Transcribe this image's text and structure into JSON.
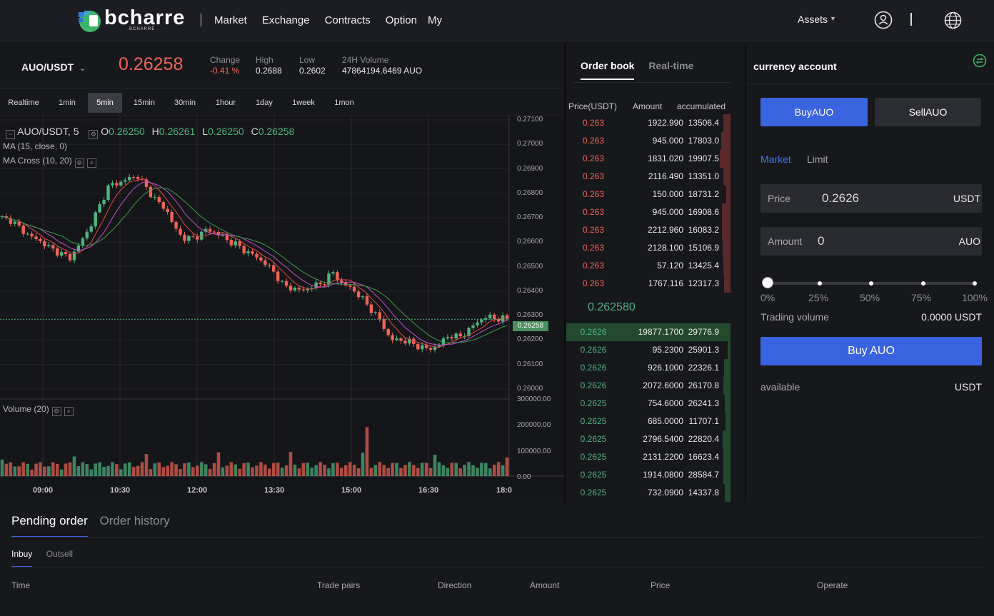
{
  "nav": {
    "logo_text": "bcharre",
    "logo_sub": "BCHARRE",
    "links": [
      "Market",
      "Exchange",
      "Contracts",
      "Option",
      "My"
    ],
    "assets": "Assets",
    "user_icon": "user-icon",
    "globe_icon": "globe-icon"
  },
  "ticker": {
    "pair": "AUO/USDT",
    "last_price": "0.26258",
    "change_label": "Change",
    "change_value": "-0.41 %",
    "high_label": "High",
    "high_value": "0.2688",
    "low_label": "Low",
    "low_value": "0.2602",
    "volume_label": "24H Volume",
    "volume_value": "47864194.6469 AUO"
  },
  "timeframes": [
    "Realtime",
    "1min",
    "5min",
    "15min",
    "30min",
    "1hour",
    "1day",
    "1week",
    "1mon"
  ],
  "active_timeframe": "5min",
  "chart": {
    "symbol": "AUO/USDT, 5",
    "o_label": "O",
    "o_value": "0.26250",
    "h_label": "H",
    "h_value": "0.26261",
    "l_label": "L",
    "l_value": "0.26250",
    "c_label": "C",
    "c_value": "0.26258",
    "ma_label": "MA (15, close, 0)",
    "macross_label": "MA Cross (10, 20)",
    "volume_label": "Volume (20)",
    "price_axis": [
      "0.27100",
      "0.27000",
      "0.26900",
      "0.26800",
      "0.26700",
      "0.26600",
      "0.26500",
      "0.26400",
      "0.26300",
      "0.26200",
      "0.26100",
      "0.26000"
    ],
    "volume_axis": [
      "300000.00",
      "200000.00",
      "100000.00",
      "0.00"
    ],
    "time_axis": [
      "09:00",
      "10:30",
      "12:00",
      "13:30",
      "15:00",
      "16:30",
      "18:0"
    ],
    "current_price_tag": "0.26258",
    "up_color": "#4fb380",
    "down_color": "#ef6456"
  },
  "chart_data": {
    "type": "candlestick",
    "close_series": [
      0.2669,
      0.2668,
      0.2664,
      0.2661,
      0.2659,
      0.2656,
      0.2654,
      0.2652,
      0.2658,
      0.2665,
      0.2674,
      0.2683,
      0.2684,
      0.2686,
      0.2687,
      0.2681,
      0.2676,
      0.2672,
      0.2663,
      0.266,
      0.2661,
      0.2664,
      0.2663,
      0.266,
      0.2658,
      0.2655,
      0.2653,
      0.265,
      0.2646,
      0.264,
      0.2639,
      0.2638,
      0.264,
      0.2641,
      0.2646,
      0.2641,
      0.2639,
      0.2635,
      0.263,
      0.2625,
      0.2617,
      0.2617,
      0.2616,
      0.2614,
      0.2613,
      0.2615,
      0.2619,
      0.2618,
      0.2621,
      0.2625,
      0.2627,
      0.2626,
      0.2626
    ],
    "ylim": [
      0.2596,
      0.2711
    ],
    "volume_ylim": [
      0,
      300000
    ],
    "x_ticks": [
      "09:00",
      "10:30",
      "12:00",
      "13:30",
      "15:00",
      "16:30",
      "18:0"
    ]
  },
  "orderbook": {
    "tab_active": "Order book",
    "tab_inactive": "Real-time",
    "header": [
      "Price(USDT)",
      "Amount",
      "accumulated"
    ],
    "asks": [
      {
        "p": "0.263",
        "a": "1922.990",
        "c": "13506.4",
        "depth": 0.45
      },
      {
        "p": "0.263",
        "a": "945.000",
        "c": "17803.0",
        "depth": 0.6
      },
      {
        "p": "0.263",
        "a": "1831.020",
        "c": "19907.5",
        "depth": 0.7
      },
      {
        "p": "0.263",
        "a": "2116.490",
        "c": "13351.0",
        "depth": 0.45
      },
      {
        "p": "0.263",
        "a": "150.000",
        "c": "18731.2",
        "depth": 0.1
      },
      {
        "p": "0.263",
        "a": "945.000",
        "c": "16908.6",
        "depth": 0.55
      },
      {
        "p": "0.263",
        "a": "2212.960",
        "c": "16083.2",
        "depth": 0.55
      },
      {
        "p": "0.263",
        "a": "2128.100",
        "c": "15106.9",
        "depth": 0.5
      },
      {
        "p": "0.263",
        "a": "57.120",
        "c": "13425.4",
        "depth": 0.45
      },
      {
        "p": "0.263",
        "a": "1767.116",
        "c": "12317.3",
        "depth": 0.4
      }
    ],
    "mid_price": "0.262580",
    "bids": [
      {
        "p": "0.2626",
        "a": "19877.1700",
        "c": "29776.9",
        "depth": 1.0
      },
      {
        "p": "0.2626",
        "a": "95.2300",
        "c": "25901.3",
        "depth": 0.05
      },
      {
        "p": "0.2626",
        "a": "926.1000",
        "c": "22326.1",
        "depth": 0.4
      },
      {
        "p": "0.2626",
        "a": "2072.6000",
        "c": "26170.8",
        "depth": 0.45
      },
      {
        "p": "0.2625",
        "a": "754.6000",
        "c": "26241.3",
        "depth": 0.35
      },
      {
        "p": "0.2625",
        "a": "685.0000",
        "c": "11707.1",
        "depth": 0.3
      },
      {
        "p": "0.2625",
        "a": "2796.5400",
        "c": "22820.4",
        "depth": 0.5
      },
      {
        "p": "0.2625",
        "a": "2131.2200",
        "c": "16623.4",
        "depth": 0.45
      },
      {
        "p": "0.2625",
        "a": "1914.0800",
        "c": "28584.7",
        "depth": 0.45
      },
      {
        "p": "0.2625",
        "a": "732.0900",
        "c": "14337.8",
        "depth": 0.35
      }
    ]
  },
  "account": {
    "title": "currency account",
    "buy_tab": "BuyAUO",
    "sell_tab": "SellAUO",
    "order_type_active": "Market",
    "order_type_inactive": "Limit",
    "price_label": "Price",
    "price_value": "0.2626",
    "price_unit": "USDT",
    "amount_label": "Amount",
    "amount_value": "0",
    "amount_unit": "AUO",
    "slider_value": 0,
    "pcts": [
      "0%",
      "25%",
      "50%",
      "75%",
      "100%"
    ],
    "trading_volume_label": "Trading volume",
    "trading_volume_value": "0.0000 USDT",
    "buy_button": "Buy AUO",
    "available_label": "available",
    "available_unit": "USDT",
    "accent": "#3a63e0"
  },
  "orders": {
    "tab_active": "Pending order",
    "tab_inactive": "Order history",
    "sub_active": "Inbuy",
    "sub_inactive": "Outsell",
    "columns": [
      "Time",
      "Trade pairs",
      "Direction",
      "Amount",
      "Price",
      "Operate"
    ]
  }
}
